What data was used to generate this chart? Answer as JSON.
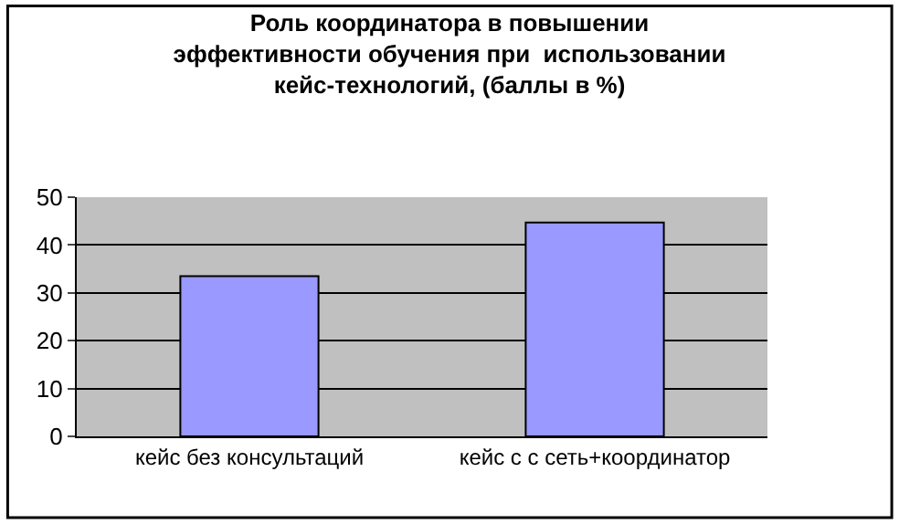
{
  "chart_data": {
    "type": "bar",
    "title": "Роль координатора в повышении\nэффективности обучения при  использовании\nкейс-технологий, (баллы в %)",
    "categories": [
      "кейс без консультаций",
      "кейс с с сеть+координатор"
    ],
    "values": [
      33.5,
      44.7
    ],
    "color": "#9999ff",
    "ylim": [
      0,
      50
    ],
    "yticks": [
      0,
      10,
      20,
      30,
      40,
      50
    ],
    "grid": "y",
    "legend": false
  }
}
